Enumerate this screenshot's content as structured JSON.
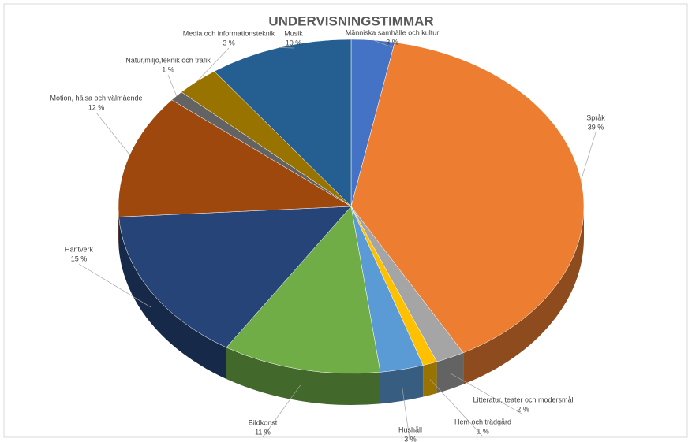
{
  "chart_data": {
    "type": "pie3d",
    "title": "UNDERVISNINGSTIMMAR",
    "categories": [
      "Människa samhälle och kultur",
      "Språk",
      "Litteratur, teater och modersmål",
      "Hem och trädgård",
      "Hushåll",
      "Bildkonst",
      "Hantverk",
      "Motion, hälsa och välmående",
      "Natur,miljö,teknik och trafik",
      "Media och informationsteknik",
      "Musik"
    ],
    "values": [
      3,
      39,
      2,
      1,
      3,
      11,
      15,
      12,
      1,
      3,
      10
    ],
    "value_labels": [
      "3 %",
      "39 %",
      "2 %",
      "1 %",
      "3 %",
      "11 %",
      "15 %",
      "12 %",
      "1 %",
      "3 %",
      "10 %"
    ],
    "colors": [
      "#4472c4",
      "#ed7d31",
      "#a5a5a5",
      "#ffc000",
      "#5b9bd5",
      "#70ad47",
      "#264478",
      "#9e480e",
      "#636363",
      "#997300",
      "#255e91"
    ]
  }
}
